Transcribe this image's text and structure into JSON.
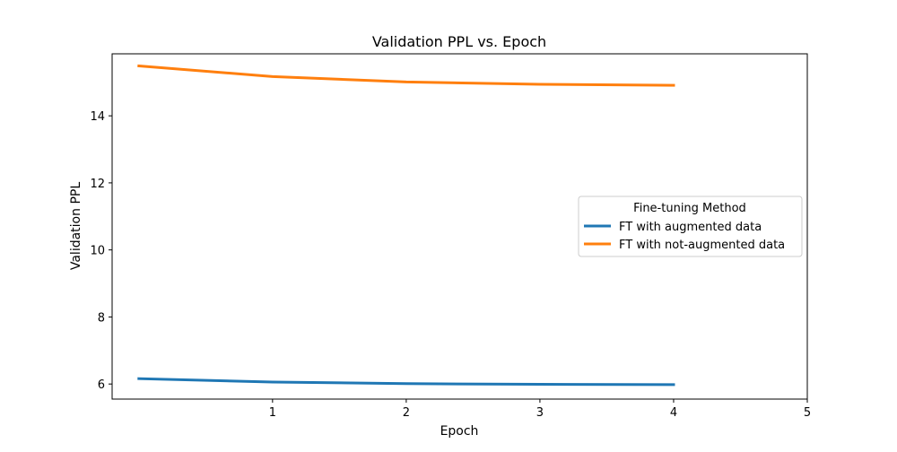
{
  "chart_data": {
    "type": "line",
    "title": "Validation PPL  vs. Epoch",
    "xlabel": "Epoch",
    "ylabel": "Validation PPL",
    "x": [
      0,
      1,
      2,
      3,
      4
    ],
    "xlim": [
      -0.2,
      5
    ],
    "ylim": [
      5.55,
      15.85
    ],
    "x_ticks": [
      1,
      2,
      3,
      4,
      5
    ],
    "y_ticks": [
      6,
      8,
      10,
      12,
      14
    ],
    "grid": false,
    "legend": {
      "title": "Fine-tuning Method",
      "placement": "center-right"
    },
    "series": [
      {
        "name": "FT with augmented data",
        "color": "#1f77b4",
        "values": [
          6.16,
          6.06,
          6.01,
          5.99,
          5.98
        ]
      },
      {
        "name": "FT with not-augmented data",
        "color": "#ff7f0e",
        "values": [
          15.49,
          15.17,
          15.01,
          14.94,
          14.91
        ]
      }
    ]
  }
}
